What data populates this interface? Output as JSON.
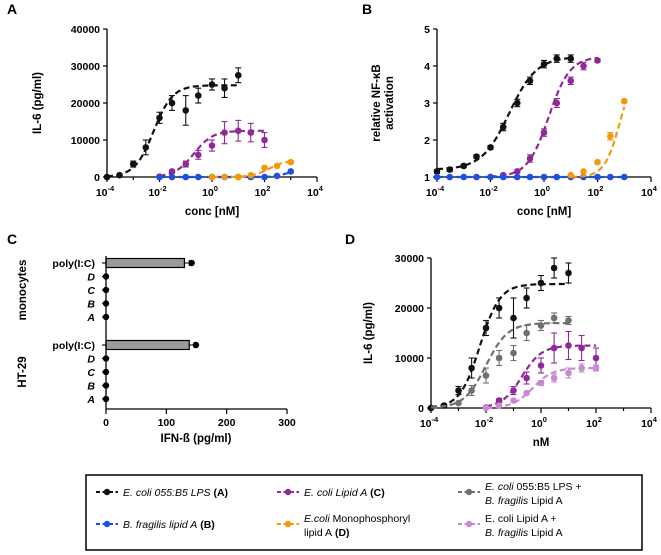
{
  "colors": {
    "black": "#111111",
    "purple": "#8e2a96",
    "blue": "#1f4fe0",
    "orange": "#f2990f",
    "gray": "#707070",
    "pink": "#c88ad0",
    "bar_fill": "#9a9a9a"
  },
  "panel_letters": [
    "A",
    "B",
    "C",
    "D"
  ],
  "chart_data": [
    {
      "panel": "A",
      "type": "scatter",
      "xscale": "log",
      "xlim": [
        0.0001,
        10000
      ],
      "ylim": [
        0,
        40000
      ],
      "xticks": [
        0.0001,
        0.01,
        1,
        100,
        10000
      ],
      "xtick_labels": [
        {
          "base": "10",
          "exp": "-4"
        },
        {
          "base": "10",
          "exp": "-2"
        },
        {
          "base": "10",
          "exp": "0"
        },
        {
          "base": "10",
          "exp": "2"
        },
        {
          "base": "10",
          "exp": "4"
        }
      ],
      "yticks": [
        0,
        10000,
        20000,
        30000,
        40000
      ],
      "ytick_labels": [
        "0",
        "10000",
        "20000",
        "30000",
        "40000"
      ],
      "xlabel": "conc [nM]",
      "ylabel": "IL-6 (pg/ml)",
      "series": [
        {
          "name": "E. coli 055:B5 LPS (A)",
          "color_key": "black",
          "x": [
            0.0001,
            0.0003,
            0.001,
            0.003,
            0.01,
            0.03,
            0.1,
            0.3,
            1,
            3,
            10
          ],
          "y": [
            0,
            500,
            3500,
            8000,
            16000,
            20000,
            18000,
            22000,
            25000,
            24000,
            27500
          ],
          "err": [
            0,
            300,
            800,
            2000,
            1500,
            2000,
            4000,
            2000,
            1500,
            2500,
            2000
          ],
          "fit": {
            "bottom": 0,
            "top": 24800,
            "ec50": 0.006,
            "hill": 1.2,
            "xmin": 0.0001,
            "xmax": 10
          }
        },
        {
          "name": "E. coli Lipid A (C)",
          "color_key": "purple",
          "x": [
            0.01,
            0.03,
            0.1,
            0.3,
            1,
            3,
            10,
            30,
            100
          ],
          "y": [
            100,
            1500,
            3500,
            6000,
            8500,
            12000,
            12500,
            12000,
            10000
          ],
          "err": [
            0,
            400,
            800,
            1200,
            1500,
            3000,
            2800,
            2500,
            2000
          ],
          "fit": {
            "bottom": 0,
            "top": 12500,
            "ec50": 0.2,
            "hill": 1.2,
            "xmin": 0.01,
            "xmax": 100
          }
        },
        {
          "name": "B. fragilis lipid A (B)",
          "color_key": "blue",
          "x": [
            0.01,
            0.03,
            0.1,
            0.3,
            1,
            3,
            10,
            30,
            100,
            300,
            1000
          ],
          "y": [
            0,
            0,
            0,
            0,
            0,
            0,
            0,
            0,
            0,
            300,
            1500
          ],
          "err": [
            0,
            0,
            0,
            0,
            0,
            0,
            0,
            0,
            0,
            0,
            0
          ],
          "fit": {
            "bottom": 0,
            "top": 1700,
            "ec50": 600,
            "hill": 2.0,
            "xmin": 0.01,
            "xmax": 1000
          }
        },
        {
          "name": "E.coli Monophosphoryl lipid A (D)",
          "color_key": "orange",
          "x": [
            1,
            3,
            10,
            30,
            100,
            300,
            1000
          ],
          "y": [
            0,
            0,
            0,
            500,
            2500,
            3000,
            4000
          ],
          "err": [
            0,
            0,
            0,
            0,
            300,
            0,
            300
          ],
          "fit": {
            "bottom": 0,
            "top": 4500,
            "ec50": 150,
            "hill": 1.4,
            "xmin": 1,
            "xmax": 1000
          }
        }
      ]
    },
    {
      "panel": "B",
      "type": "scatter",
      "xscale": "log",
      "xlim": [
        0.0001,
        10000
      ],
      "ylim": [
        1,
        5
      ],
      "xticks": [
        0.0001,
        0.01,
        1,
        100,
        10000
      ],
      "xtick_labels": [
        {
          "base": "10",
          "exp": "-4"
        },
        {
          "base": "10",
          "exp": "-2"
        },
        {
          "base": "10",
          "exp": "0"
        },
        {
          "base": "10",
          "exp": "2"
        },
        {
          "base": "10",
          "exp": "4"
        }
      ],
      "yticks": [
        1,
        2,
        3,
        4,
        5
      ],
      "ytick_labels": [
        "1",
        "2",
        "3",
        "4",
        "5"
      ],
      "xlabel": "conc [nM]",
      "ylabel": [
        "relative NF-κB",
        "activation"
      ],
      "series": [
        {
          "name": "E. coli 055:B5 LPS (A)",
          "color_key": "black",
          "x": [
            0.0001,
            0.0003,
            0.001,
            0.003,
            0.01,
            0.03,
            0.1,
            0.3,
            1,
            3,
            10
          ],
          "y": [
            1.15,
            1.2,
            1.3,
            1.55,
            1.8,
            2.35,
            3.0,
            3.6,
            4.05,
            4.2,
            4.2
          ],
          "err": [
            0.05,
            0.05,
            0.05,
            0.05,
            0.05,
            0.1,
            0.1,
            0.1,
            0.1,
            0.1,
            0.1
          ],
          "fit": {
            "bottom": 1.2,
            "top": 4.25,
            "ec50": 0.05,
            "hill": 0.85,
            "xmin": 0.0001,
            "xmax": 10
          }
        },
        {
          "name": "E. coli Lipid A (C)",
          "color_key": "purple",
          "x": [
            0.01,
            0.03,
            0.1,
            0.3,
            1,
            3,
            10,
            30,
            100
          ],
          "y": [
            1,
            1.05,
            1.15,
            1.5,
            2.2,
            3.0,
            3.6,
            4.0,
            4.15
          ],
          "err": [
            0,
            0,
            0,
            0.1,
            0.1,
            0.12,
            0.1,
            0.1,
            0.05
          ],
          "fit": {
            "bottom": 1.0,
            "top": 4.25,
            "ec50": 1.5,
            "hill": 1.1,
            "xmin": 0.01,
            "xmax": 100
          }
        },
        {
          "name": "B. fragilis lipid A (B)",
          "color_key": "blue",
          "x": [
            0.0001,
            0.0003,
            0.001,
            0.003,
            0.01,
            0.03,
            0.1,
            0.3,
            1,
            3,
            10,
            30,
            100,
            300,
            1000
          ],
          "y": [
            1,
            1,
            1,
            1,
            1,
            1,
            1,
            1,
            1,
            1,
            1,
            1,
            1,
            1,
            1
          ],
          "err": [
            0,
            0,
            0,
            0,
            0,
            0,
            0,
            0,
            0,
            0,
            0,
            0,
            0,
            0,
            0
          ],
          "fit": {
            "bottom": 1.0,
            "top": 1.0,
            "ec50": 1,
            "hill": 1,
            "xmin": 0.0001,
            "xmax": 1000
          }
        },
        {
          "name": "E.coli Monophosphoryl lipid A (D)",
          "color_key": "orange",
          "x": [
            10,
            30,
            100,
            300,
            1000
          ],
          "y": [
            1.05,
            1.15,
            1.4,
            2.1,
            3.05
          ],
          "err": [
            0,
            0,
            0.05,
            0.1,
            0.05
          ],
          "fit": {
            "bottom": 1.0,
            "top": 4.0,
            "ec50": 700,
            "hill": 1.5,
            "xmin": 10,
            "xmax": 1000
          }
        }
      ]
    },
    {
      "panel": "C",
      "type": "bar",
      "orientation": "horizontal",
      "xlim": [
        0,
        300
      ],
      "xticks": [
        0,
        100,
        200,
        300
      ],
      "xtick_labels": [
        "0",
        "100",
        "200",
        "300"
      ],
      "xlabel": "IFN-ß (pg/ml)",
      "groups": [
        {
          "label": "monocytes",
          "categories": [
            "poly(I:C)",
            "D",
            "C",
            "B",
            "A"
          ],
          "values": [
            130,
            0,
            0,
            0,
            0
          ],
          "points": [
            142,
            0,
            0,
            0,
            0
          ],
          "err": [
            8,
            0,
            0,
            0,
            0
          ]
        },
        {
          "label": "HT-29",
          "categories": [
            "poly(I:C)",
            "D",
            "C",
            "B",
            "A"
          ],
          "values": [
            138,
            0,
            0,
            0,
            0
          ],
          "points": [
            149,
            0,
            0,
            0,
            0
          ],
          "err": [
            8,
            0,
            0,
            0,
            0
          ]
        }
      ]
    },
    {
      "panel": "D",
      "type": "scatter",
      "xscale": "log",
      "xlim": [
        0.0001,
        10000
      ],
      "ylim": [
        0,
        30000
      ],
      "xticks": [
        0.0001,
        0.01,
        1,
        100,
        10000
      ],
      "xtick_labels": [
        {
          "base": "10",
          "exp": "-4"
        },
        {
          "base": "10",
          "exp": "-2"
        },
        {
          "base": "10",
          "exp": "0"
        },
        {
          "base": "10",
          "exp": "2"
        },
        {
          "base": "10",
          "exp": "4"
        }
      ],
      "yticks": [
        0,
        10000,
        20000,
        30000
      ],
      "ytick_labels": [
        "0",
        "10000",
        "20000",
        "30000"
      ],
      "xlabel": "nM",
      "ylabel": "IL-6 (pg/ml)",
      "series": [
        {
          "name": "E. coli 055:B5 LPS (A)",
          "color_key": "black",
          "x": [
            0.0001,
            0.0003,
            0.001,
            0.003,
            0.01,
            0.03,
            0.1,
            0.3,
            1,
            3,
            10
          ],
          "y": [
            0,
            500,
            3500,
            8000,
            16000,
            20000,
            18000,
            22000,
            25000,
            28000,
            27000
          ],
          "err": [
            0,
            300,
            800,
            2000,
            1500,
            2000,
            4000,
            2000,
            1500,
            2000,
            2000
          ],
          "fit": {
            "bottom": 0,
            "top": 24800,
            "ec50": 0.006,
            "hill": 1.2,
            "xmin": 0.0001,
            "xmax": 10
          }
        },
        {
          "name": "E. coli 055:B5 LPS + B. fragilis Lipid A",
          "color_key": "gray",
          "x": [
            0.001,
            0.003,
            0.01,
            0.03,
            0.1,
            0.3,
            1,
            3,
            10
          ],
          "y": [
            1000,
            3500,
            6500,
            10000,
            11000,
            15000,
            16500,
            18000,
            17500
          ],
          "err": [
            200,
            1000,
            1500,
            1500,
            1500,
            1500,
            1000,
            1000,
            800
          ],
          "fit": {
            "bottom": 0,
            "top": 17000,
            "ec50": 0.01,
            "hill": 1.1,
            "xmin": 0.0001,
            "xmax": 10
          }
        },
        {
          "name": "E. coli Lipid A (C)",
          "color_key": "purple",
          "x": [
            0.01,
            0.03,
            0.1,
            0.3,
            1,
            3,
            10,
            30,
            100
          ],
          "y": [
            100,
            1500,
            3500,
            6000,
            8500,
            12000,
            12500,
            12000,
            10000
          ],
          "err": [
            0,
            400,
            800,
            1200,
            1500,
            3000,
            2800,
            2500,
            2000
          ],
          "fit": {
            "bottom": 0,
            "top": 12500,
            "ec50": 0.2,
            "hill": 1.2,
            "xmin": 0.01,
            "xmax": 100
          }
        },
        {
          "name": "E. coli Lipid A + B. fragilis Lipid A",
          "color_key": "pink",
          "x": [
            0.01,
            0.03,
            0.1,
            0.3,
            1,
            3,
            10,
            30,
            100
          ],
          "y": [
            0,
            500,
            1500,
            3000,
            5000,
            6000,
            7000,
            8000,
            8000
          ],
          "err": [
            0,
            0,
            0,
            0,
            500,
            800,
            1000,
            800,
            600
          ],
          "fit": {
            "bottom": 0,
            "top": 8000,
            "ec50": 0.5,
            "hill": 1.2,
            "xmin": 0.01,
            "xmax": 100
          }
        }
      ]
    }
  ],
  "legend": [
    {
      "color_key": "black",
      "lines": [
        {
          "italic": "E. coli 055:B5 LPS",
          "bold": " (A)"
        }
      ]
    },
    {
      "color_key": "purple",
      "lines": [
        {
          "italic": "E. coli Lipid A",
          "bold": " (C)"
        }
      ]
    },
    {
      "color_key": "gray",
      "lines": [
        {
          "italic": "E. coli",
          "plain": " 055:B5 LPS +"
        },
        {
          "italic": "B. fragilis",
          "plain": " Lipid A"
        }
      ]
    },
    {
      "color_key": "blue",
      "lines": [
        {
          "italic": "B. fragilis lipid A",
          "bold": " (B)"
        }
      ]
    },
    {
      "color_key": "orange",
      "lines": [
        {
          "italic": "E.coli",
          "plain": " Monophosphoryl"
        },
        {
          "plain": "lipid A",
          "bold": " (D)"
        }
      ]
    },
    {
      "color_key": "pink",
      "lines": [
        {
          "plain": "E. coli Lipid A +"
        },
        {
          "italic": "B. fragilis",
          "plain": " Lipid A"
        }
      ]
    }
  ]
}
